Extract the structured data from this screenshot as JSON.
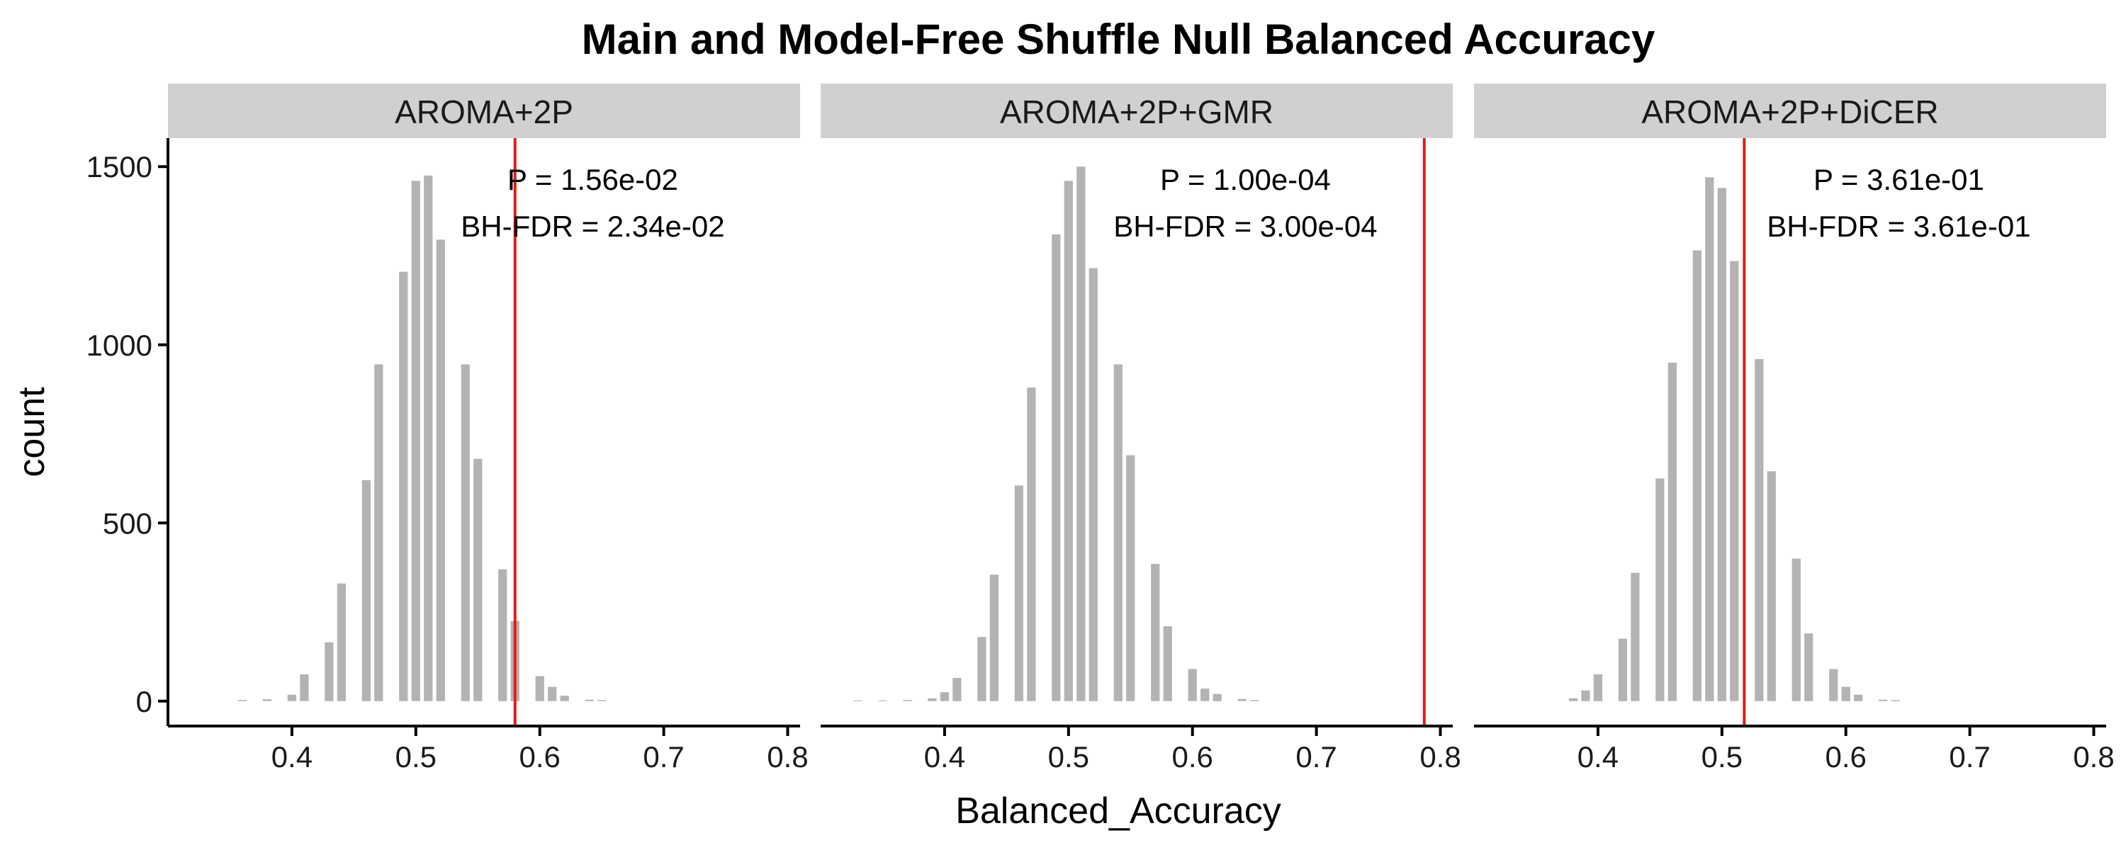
{
  "chart_data": {
    "type": "bar",
    "title": "Main and Model-Free Shuffle Null Balanced Accuracy",
    "xlabel": "Balanced_Accuracy",
    "ylabel": "count",
    "xlim": [
      0.3,
      0.81
    ],
    "ylim": [
      -70,
      1580
    ],
    "x_ticks": [
      0.4,
      0.5,
      0.6,
      0.7,
      0.8
    ],
    "x_tick_labels": [
      "0.4",
      "0.5",
      "0.6",
      "0.7",
      "0.8"
    ],
    "y_ticks": [
      0,
      500,
      1000,
      1500
    ],
    "y_tick_labels": [
      "0",
      "500",
      "1000",
      "1500"
    ],
    "bar_color": "#b3b3b3",
    "line_color": "#e41a1c",
    "strip_color": "#d0d0d0",
    "grid": false,
    "panels": [
      {
        "label": "AROMA+2P",
        "observed": 0.58,
        "p_text": "P = 1.56e-02",
        "fdr_text": "BH-FDR = 2.34e-02",
        "x": [
          0.36,
          0.37,
          0.38,
          0.39,
          0.4,
          0.41,
          0.42,
          0.43,
          0.44,
          0.45,
          0.46,
          0.47,
          0.48,
          0.49,
          0.5,
          0.51,
          0.52,
          0.53,
          0.54,
          0.55,
          0.56,
          0.57,
          0.58,
          0.59,
          0.6,
          0.61,
          0.62,
          0.63,
          0.64,
          0.65
        ],
        "values": [
          3,
          0,
          5,
          0,
          18,
          75,
          0,
          165,
          330,
          0,
          620,
          945,
          0,
          1205,
          1460,
          1475,
          1295,
          0,
          945,
          680,
          0,
          370,
          225,
          0,
          70,
          40,
          15,
          0,
          4,
          3
        ]
      },
      {
        "label": "AROMA+2P+GMR",
        "observed": 0.787,
        "p_text": "P = 1.00e-04",
        "fdr_text": "BH-FDR = 3.00e-04",
        "x": [
          0.33,
          0.34,
          0.35,
          0.36,
          0.37,
          0.38,
          0.39,
          0.4,
          0.41,
          0.42,
          0.43,
          0.44,
          0.45,
          0.46,
          0.47,
          0.48,
          0.49,
          0.5,
          0.51,
          0.52,
          0.53,
          0.54,
          0.55,
          0.56,
          0.57,
          0.58,
          0.59,
          0.6,
          0.61,
          0.62,
          0.63,
          0.64,
          0.65
        ],
        "values": [
          2,
          0,
          2,
          0,
          3,
          0,
          8,
          25,
          65,
          0,
          180,
          355,
          0,
          605,
          880,
          0,
          1310,
          1460,
          1500,
          1215,
          0,
          945,
          690,
          0,
          385,
          210,
          0,
          90,
          35,
          20,
          0,
          6,
          3
        ]
      },
      {
        "label": "AROMA+2P+DiCER",
        "observed": 0.518,
        "p_text": "P = 3.61e-01",
        "fdr_text": "BH-FDR = 3.61e-01",
        "x": [
          0.38,
          0.39,
          0.4,
          0.41,
          0.42,
          0.43,
          0.44,
          0.45,
          0.46,
          0.47,
          0.48,
          0.49,
          0.5,
          0.51,
          0.52,
          0.53,
          0.54,
          0.55,
          0.56,
          0.57,
          0.58,
          0.59,
          0.6,
          0.61,
          0.62,
          0.63,
          0.64,
          0.65
        ],
        "values": [
          8,
          30,
          75,
          0,
          175,
          360,
          0,
          625,
          950,
          0,
          1265,
          1470,
          1440,
          1235,
          0,
          960,
          645,
          0,
          400,
          190,
          0,
          90,
          40,
          18,
          0,
          4,
          3,
          0
        ]
      }
    ]
  }
}
